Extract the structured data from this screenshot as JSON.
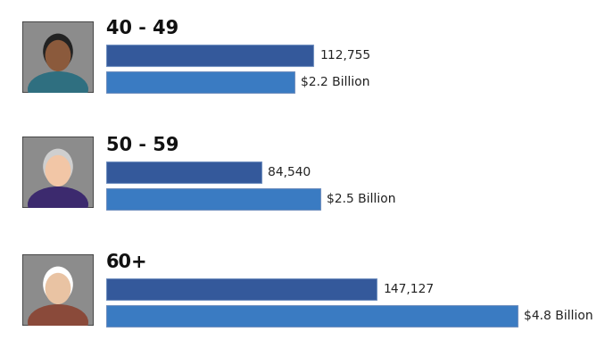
{
  "chart_data": {
    "type": "bar",
    "orientation": "horizontal",
    "tick_labels": false,
    "data_labels": true,
    "categories": [
      "40 - 49",
      "50 - 59",
      "60+"
    ],
    "series": [
      {
        "color": "#34599b",
        "values": [
          112755,
          84540,
          147127
        ],
        "value_labels": [
          "112,755",
          "84,540",
          "147,127"
        ]
      },
      {
        "color": "#3a7bc2",
        "values": [
          2.2,
          2.5,
          4.8
        ],
        "value_labels": [
          "$2.2 Billion",
          "$2.5 Billion",
          "$4.8 Billion"
        ]
      }
    ]
  }
}
